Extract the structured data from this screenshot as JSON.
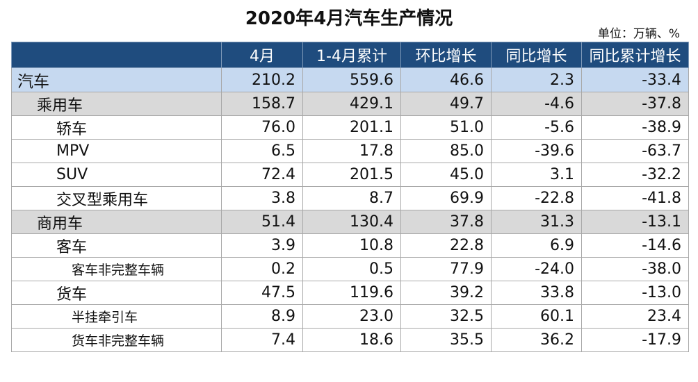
{
  "chart_data": {
    "type": "table",
    "title": "2020年4月汽车生产情况",
    "unit": "单位：万辆、%",
    "columns": [
      "",
      "4月",
      "1-4月累计",
      "环比增长",
      "同比增长",
      "同比累计增长"
    ],
    "rows": [
      {
        "label": "汽车",
        "level": 0,
        "values": [
          "210.2",
          "559.6",
          "46.6",
          "2.3",
          "-33.4"
        ]
      },
      {
        "label": "乘用车",
        "level": 1,
        "values": [
          "158.7",
          "429.1",
          "49.7",
          "-4.6",
          "-37.8"
        ]
      },
      {
        "label": "轿车",
        "level": 2,
        "values": [
          "76.0",
          "201.1",
          "51.0",
          "-5.6",
          "-38.9"
        ]
      },
      {
        "label": "MPV",
        "level": 2,
        "values": [
          "6.5",
          "17.8",
          "85.0",
          "-39.6",
          "-63.7"
        ]
      },
      {
        "label": "SUV",
        "level": 2,
        "values": [
          "72.4",
          "201.5",
          "45.0",
          "3.1",
          "-32.2"
        ]
      },
      {
        "label": "交叉型乘用车",
        "level": 2,
        "values": [
          "3.8",
          "8.7",
          "69.9",
          "-22.8",
          "-41.8"
        ]
      },
      {
        "label": "商用车",
        "level": 1,
        "values": [
          "51.4",
          "130.4",
          "37.8",
          "31.3",
          "-13.1"
        ]
      },
      {
        "label": "客车",
        "level": 2,
        "values": [
          "3.9",
          "10.8",
          "22.8",
          "6.9",
          "-14.6"
        ]
      },
      {
        "label": "客车非完整车辆",
        "level": 3,
        "values": [
          "0.2",
          "0.5",
          "77.9",
          "-24.0",
          "-38.0"
        ]
      },
      {
        "label": "货车",
        "level": 2,
        "values": [
          "47.5",
          "119.6",
          "39.2",
          "33.8",
          "-13.0"
        ]
      },
      {
        "label": "半挂牵引车",
        "level": 3,
        "values": [
          "8.9",
          "23.0",
          "32.5",
          "60.1",
          "23.4"
        ]
      },
      {
        "label": "货车非完整车辆",
        "level": 3,
        "values": [
          "7.4",
          "18.6",
          "35.5",
          "36.2",
          "-17.9"
        ]
      }
    ],
    "colors": {
      "header_bg": "#1f4c7e",
      "header_text": "#ffffff",
      "level0_bg": "#c6d9f0",
      "level1_bg": "#d9d9d9",
      "row_bg": "#ffffff"
    }
  }
}
